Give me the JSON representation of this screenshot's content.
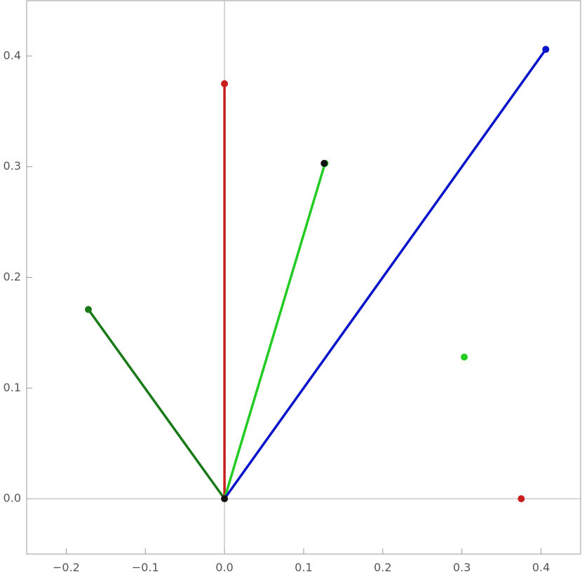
{
  "chart_data": {
    "type": "line",
    "xlim": [
      -0.25,
      0.45
    ],
    "ylim": [
      -0.05,
      0.45
    ],
    "xticks": [
      {
        "value": -0.2,
        "label": "−0.2"
      },
      {
        "value": -0.1,
        "label": "−0.1"
      },
      {
        "value": 0,
        "label": "0.0"
      },
      0.1,
      0.2,
      0.3,
      0.4
    ],
    "yticks": [
      {
        "value": 0,
        "label": "0.0"
      },
      0.1,
      0.2,
      0.3,
      0.4
    ],
    "axes_color": "#b0b0b0",
    "series": [
      {
        "color": "#1a7a1a",
        "x": [
          0,
          -0.172
        ],
        "y": [
          0,
          0.171
        ]
      },
      {
        "color": "#c81e1e",
        "x": [
          0,
          0
        ],
        "y": [
          0,
          0.375
        ]
      },
      {
        "color": "#22cc22",
        "x": [
          0,
          0.127
        ],
        "y": [
          0,
          0.303
        ]
      },
      {
        "color": "#0a14c8",
        "x": [
          0,
          0.406
        ],
        "y": [
          0,
          0.406
        ]
      }
    ],
    "points": [
      {
        "color": "#111111",
        "x": 0.126,
        "y": 0.303
      },
      {
        "color": "#22cc22",
        "x": 0.303,
        "y": 0.128
      },
      {
        "color": "#c81e1e",
        "x": 0.375,
        "y": 0
      },
      {
        "color": "#111111",
        "x": 0,
        "y": 0
      }
    ]
  }
}
